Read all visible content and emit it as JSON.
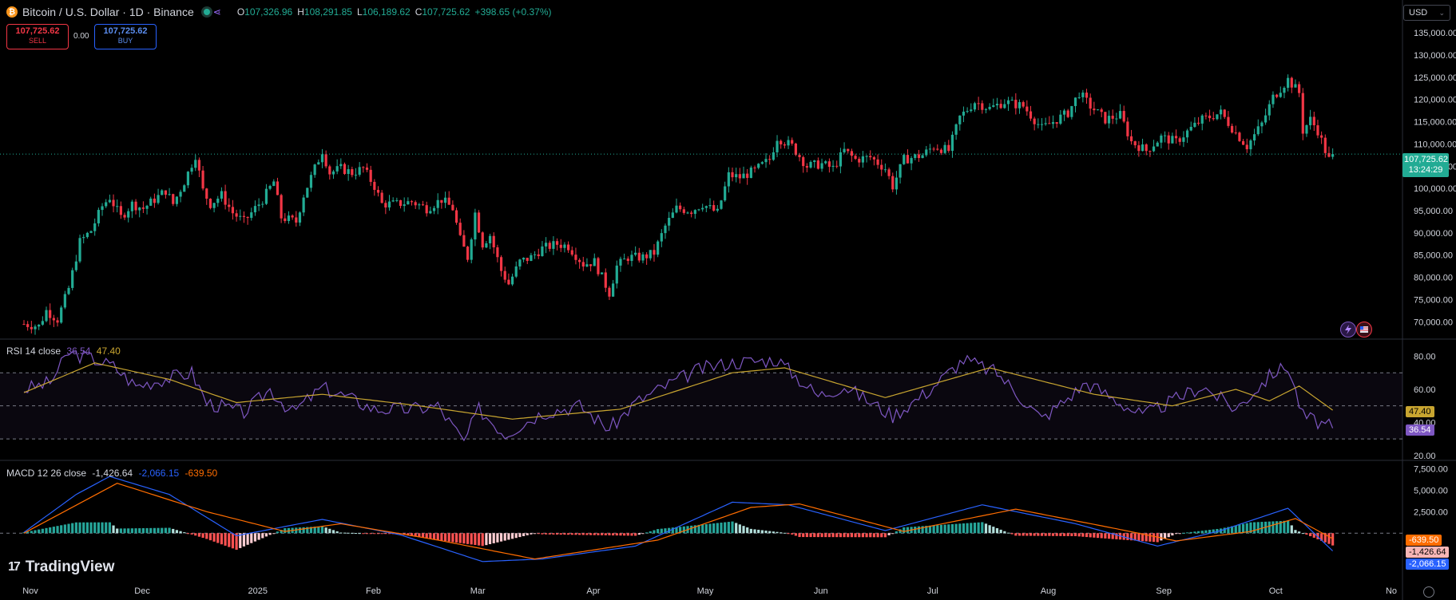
{
  "header": {
    "symbol_title": "Bitcoin / U.S. Dollar · 1D · Binance",
    "coin_icon": "bitcoin-icon",
    "ohlc": [
      {
        "label": "O",
        "value": "107,326.96"
      },
      {
        "label": "H",
        "value": "108,291.85"
      },
      {
        "label": "L",
        "value": "106,189.62"
      },
      {
        "label": "C",
        "value": "107,725.62"
      }
    ],
    "change": "+398.65 (+0.37%)"
  },
  "trade": {
    "sell_price": "107,725.62",
    "sell_label": "SELL",
    "spread": "0.00",
    "buy_price": "107,725.62",
    "buy_label": "BUY"
  },
  "currency": {
    "selected": "USD"
  },
  "price_tag": {
    "price": "107,725.62",
    "countdown": "13:24:29"
  },
  "rsi": {
    "legend": "RSI 14 close",
    "rsi_value": "36.54",
    "ma_value": "47.40",
    "levels": [
      70,
      50,
      30
    ]
  },
  "macd": {
    "legend": "MACD 12 26 close",
    "hist_value": "-1,426.64",
    "macd_value": "-2,066.15",
    "signal_value": "-639.50"
  },
  "branding": {
    "logo_text": "TradingView"
  },
  "colors": {
    "up": "#22ab94",
    "down": "#f23645",
    "rsi_line": "#7e57c2",
    "rsi_ma": "#c8a530",
    "macd_line": "#2962ff",
    "signal_line": "#ff6d00",
    "accent_tag": "#22ab94"
  },
  "chart_data": [
    {
      "type": "candlestick",
      "title": "Bitcoin / U.S. Dollar · 1D · Binance",
      "interval": "1D",
      "x_ticks": [
        "Nov",
        "Dec",
        "2025",
        "Feb",
        "Mar",
        "Apr",
        "May",
        "Jun",
        "Jul",
        "Aug",
        "Sep",
        "Oct",
        "No"
      ],
      "y_ticks": [
        "135,000.00",
        "130,000.00",
        "125,000.00",
        "120,000.00",
        "115,000.00",
        "110,000.00",
        "105,000.00",
        "100,000.00",
        "95,000.00",
        "90,000.00",
        "85,000.00",
        "80,000.00",
        "75,000.00",
        "70,000.00"
      ],
      "ylim": [
        67000,
        137000
      ],
      "close_path": [
        {
          "date": "2024-11-01",
          "close": 69500
        },
        {
          "date": "2024-11-05",
          "close": 69000
        },
        {
          "date": "2024-11-07",
          "close": 72500
        },
        {
          "date": "2024-11-10",
          "close": 70500
        },
        {
          "date": "2024-11-13",
          "close": 77500
        },
        {
          "date": "2024-11-16",
          "close": 88000
        },
        {
          "date": "2024-11-19",
          "close": 90500
        },
        {
          "date": "2024-11-22",
          "close": 96000
        },
        {
          "date": "2024-11-24",
          "close": 98000
        },
        {
          "date": "2024-11-27",
          "close": 93500
        },
        {
          "date": "2024-11-30",
          "close": 96500
        },
        {
          "date": "2024-12-03",
          "close": 95500
        },
        {
          "date": "2024-12-06",
          "close": 97500
        },
        {
          "date": "2024-12-09",
          "close": 99500
        },
        {
          "date": "2024-12-11",
          "close": 96500
        },
        {
          "date": "2024-12-14",
          "close": 101500
        },
        {
          "date": "2024-12-17",
          "close": 107500
        },
        {
          "date": "2024-12-19",
          "close": 99500
        },
        {
          "date": "2024-12-21",
          "close": 96500
        },
        {
          "date": "2024-12-24",
          "close": 98500
        },
        {
          "date": "2024-12-27",
          "close": 94500
        },
        {
          "date": "2024-12-30",
          "close": 92500
        },
        {
          "date": "2025-01-01",
          "close": 94500
        },
        {
          "date": "2025-01-04",
          "close": 97500
        },
        {
          "date": "2025-01-07",
          "close": 101500
        },
        {
          "date": "2025-01-09",
          "close": 93500
        },
        {
          "date": "2025-01-13",
          "close": 92500
        },
        {
          "date": "2025-01-15",
          "close": 98500
        },
        {
          "date": "2025-01-18",
          "close": 104500
        },
        {
          "date": "2025-01-20",
          "close": 108500
        },
        {
          "date": "2025-01-22",
          "close": 103500
        },
        {
          "date": "2025-01-25",
          "close": 104500
        },
        {
          "date": "2025-01-28",
          "close": 103500
        },
        {
          "date": "2025-01-31",
          "close": 104500
        },
        {
          "date": "2025-02-03",
          "close": 100500
        },
        {
          "date": "2025-02-05",
          "close": 96500
        },
        {
          "date": "2025-02-09",
          "close": 96500
        },
        {
          "date": "2025-02-13",
          "close": 97000
        },
        {
          "date": "2025-02-17",
          "close": 95500
        },
        {
          "date": "2025-02-21",
          "close": 97500
        },
        {
          "date": "2025-02-24",
          "close": 95500
        },
        {
          "date": "2025-02-26",
          "close": 88500
        },
        {
          "date": "2025-02-28",
          "close": 84500
        },
        {
          "date": "2025-03-02",
          "close": 94500
        },
        {
          "date": "2025-03-04",
          "close": 87500
        },
        {
          "date": "2025-03-06",
          "close": 89500
        },
        {
          "date": "2025-03-09",
          "close": 81500
        },
        {
          "date": "2025-03-11",
          "close": 78500
        },
        {
          "date": "2025-03-14",
          "close": 83500
        },
        {
          "date": "2025-03-17",
          "close": 84500
        },
        {
          "date": "2025-03-20",
          "close": 86500
        },
        {
          "date": "2025-03-24",
          "close": 87500
        },
        {
          "date": "2025-03-27",
          "close": 87000
        },
        {
          "date": "2025-03-31",
          "close": 83000
        },
        {
          "date": "2025-04-03",
          "close": 83500
        },
        {
          "date": "2025-04-07",
          "close": 76500
        },
        {
          "date": "2025-04-09",
          "close": 82500
        },
        {
          "date": "2025-04-12",
          "close": 84500
        },
        {
          "date": "2025-04-16",
          "close": 84500
        },
        {
          "date": "2025-04-19",
          "close": 85500
        },
        {
          "date": "2025-04-22",
          "close": 91500
        },
        {
          "date": "2025-04-25",
          "close": 95500
        },
        {
          "date": "2025-04-29",
          "close": 95000
        },
        {
          "date": "2025-05-02",
          "close": 96500
        },
        {
          "date": "2025-05-06",
          "close": 94500
        },
        {
          "date": "2025-05-09",
          "close": 103000
        },
        {
          "date": "2025-05-12",
          "close": 102500
        },
        {
          "date": "2025-05-16",
          "close": 104000
        },
        {
          "date": "2025-05-20",
          "close": 106500
        },
        {
          "date": "2025-05-22",
          "close": 111500
        },
        {
          "date": "2025-05-26",
          "close": 109500
        },
        {
          "date": "2025-05-30",
          "close": 105000
        },
        {
          "date": "2025-06-03",
          "close": 105500
        },
        {
          "date": "2025-06-06",
          "close": 104500
        },
        {
          "date": "2025-06-09",
          "close": 108500
        },
        {
          "date": "2025-06-12",
          "close": 106500
        },
        {
          "date": "2025-06-16",
          "close": 107000
        },
        {
          "date": "2025-06-20",
          "close": 104500
        },
        {
          "date": "2025-06-22",
          "close": 100500
        },
        {
          "date": "2025-06-25",
          "close": 106500
        },
        {
          "date": "2025-06-30",
          "close": 107500
        },
        {
          "date": "2025-07-03",
          "close": 109500
        },
        {
          "date": "2025-07-07",
          "close": 108500
        },
        {
          "date": "2025-07-10",
          "close": 116000
        },
        {
          "date": "2025-07-14",
          "close": 119500
        },
        {
          "date": "2025-07-18",
          "close": 118000
        },
        {
          "date": "2025-07-22",
          "close": 119500
        },
        {
          "date": "2025-07-27",
          "close": 118500
        },
        {
          "date": "2025-08-01",
          "close": 113500
        },
        {
          "date": "2025-08-04",
          "close": 115000
        },
        {
          "date": "2025-08-08",
          "close": 117000
        },
        {
          "date": "2025-08-11",
          "close": 121500
        },
        {
          "date": "2025-08-14",
          "close": 118500
        },
        {
          "date": "2025-08-18",
          "close": 115500
        },
        {
          "date": "2025-08-22",
          "close": 116500
        },
        {
          "date": "2025-08-25",
          "close": 110500
        },
        {
          "date": "2025-08-29",
          "close": 108500
        },
        {
          "date": "2025-09-02",
          "close": 111500
        },
        {
          "date": "2025-09-06",
          "close": 110500
        },
        {
          "date": "2025-09-10",
          "close": 113500
        },
        {
          "date": "2025-09-13",
          "close": 115500
        },
        {
          "date": "2025-09-18",
          "close": 117000
        },
        {
          "date": "2025-09-22",
          "close": 112500
        },
        {
          "date": "2025-09-25",
          "close": 109500
        },
        {
          "date": "2025-09-29",
          "close": 114500
        },
        {
          "date": "2025-10-02",
          "close": 120500
        },
        {
          "date": "2025-10-06",
          "close": 124500
        },
        {
          "date": "2025-10-09",
          "close": 121500
        },
        {
          "date": "2025-10-10",
          "close": 113000
        },
        {
          "date": "2025-10-12",
          "close": 115500
        },
        {
          "date": "2025-10-14",
          "close": 113000
        },
        {
          "date": "2025-10-16",
          "close": 108500
        },
        {
          "date": "2025-10-17",
          "close": 106500
        },
        {
          "date": "2025-10-18",
          "close": 107725.62
        }
      ],
      "last_price": 107725.62
    },
    {
      "type": "line",
      "name": "RSI 14 close",
      "y_ticks": [
        "80.00",
        "60.00",
        "40.00",
        "20.00"
      ],
      "ylim": [
        18,
        87
      ],
      "levels": [
        70,
        50,
        30
      ],
      "rsi": [
        {
          "date": "2024-11-01",
          "value": 60
        },
        {
          "date": "2024-11-08",
          "value": 64
        },
        {
          "date": "2024-11-13",
          "value": 82
        },
        {
          "date": "2024-11-20",
          "value": 78
        },
        {
          "date": "2024-11-25",
          "value": 74
        },
        {
          "date": "2024-12-01",
          "value": 62
        },
        {
          "date": "2024-12-08",
          "value": 66
        },
        {
          "date": "2024-12-16",
          "value": 70
        },
        {
          "date": "2024-12-20",
          "value": 52
        },
        {
          "date": "2024-12-30",
          "value": 46
        },
        {
          "date": "2025-01-06",
          "value": 60
        },
        {
          "date": "2025-01-12",
          "value": 46
        },
        {
          "date": "2025-01-20",
          "value": 61
        },
        {
          "date": "2025-01-27",
          "value": 55
        },
        {
          "date": "2025-02-03",
          "value": 48
        },
        {
          "date": "2025-02-13",
          "value": 48
        },
        {
          "date": "2025-02-20",
          "value": 50
        },
        {
          "date": "2025-02-27",
          "value": 28
        },
        {
          "date": "2025-03-03",
          "value": 48
        },
        {
          "date": "2025-03-10",
          "value": 33
        },
        {
          "date": "2025-03-20",
          "value": 46
        },
        {
          "date": "2025-03-30",
          "value": 50
        },
        {
          "date": "2025-04-07",
          "value": 36
        },
        {
          "date": "2025-04-14",
          "value": 52
        },
        {
          "date": "2025-04-22",
          "value": 62
        },
        {
          "date": "2025-05-01",
          "value": 72
        },
        {
          "date": "2025-05-09",
          "value": 76
        },
        {
          "date": "2025-05-22",
          "value": 78
        },
        {
          "date": "2025-06-02",
          "value": 56
        },
        {
          "date": "2025-06-09",
          "value": 62
        },
        {
          "date": "2025-06-22",
          "value": 44
        },
        {
          "date": "2025-07-01",
          "value": 58
        },
        {
          "date": "2025-07-11",
          "value": 78
        },
        {
          "date": "2025-07-20",
          "value": 70
        },
        {
          "date": "2025-08-01",
          "value": 42
        },
        {
          "date": "2025-08-13",
          "value": 64
        },
        {
          "date": "2025-08-28",
          "value": 44
        },
        {
          "date": "2025-09-13",
          "value": 62
        },
        {
          "date": "2025-09-22",
          "value": 48
        },
        {
          "date": "2025-10-02",
          "value": 70
        },
        {
          "date": "2025-10-06",
          "value": 74
        },
        {
          "date": "2025-10-10",
          "value": 44
        },
        {
          "date": "2025-10-18",
          "value": 36.54
        }
      ],
      "rsi_ma": [
        {
          "date": "2024-11-01",
          "value": 58
        },
        {
          "date": "2024-11-20",
          "value": 76
        },
        {
          "date": "2024-12-10",
          "value": 66
        },
        {
          "date": "2024-12-28",
          "value": 52
        },
        {
          "date": "2025-01-20",
          "value": 57
        },
        {
          "date": "2025-02-15",
          "value": 50
        },
        {
          "date": "2025-03-12",
          "value": 42
        },
        {
          "date": "2025-04-10",
          "value": 48
        },
        {
          "date": "2025-05-10",
          "value": 70
        },
        {
          "date": "2025-05-24",
          "value": 73
        },
        {
          "date": "2025-06-20",
          "value": 55
        },
        {
          "date": "2025-07-18",
          "value": 73
        },
        {
          "date": "2025-08-15",
          "value": 57
        },
        {
          "date": "2025-09-05",
          "value": 50
        },
        {
          "date": "2025-09-22",
          "value": 60
        },
        {
          "date": "2025-10-01",
          "value": 53
        },
        {
          "date": "2025-10-09",
          "value": 62
        },
        {
          "date": "2025-10-18",
          "value": 47.4
        }
      ],
      "rsi_last": 36.54,
      "ma_last": 47.4
    },
    {
      "type": "line",
      "name": "MACD 12 26 close",
      "y_ticks": [
        "7,500.00",
        "5,000.00",
        "2,500.00"
      ],
      "ylim": [
        -4800,
        8000
      ],
      "macd": [
        {
          "date": "2024-11-01",
          "value": 100
        },
        {
          "date": "2024-11-15",
          "value": 4500
        },
        {
          "date": "2024-11-24",
          "value": 6600
        },
        {
          "date": "2024-12-10",
          "value": 4500
        },
        {
          "date": "2024-12-28",
          "value": -300
        },
        {
          "date": "2025-01-20",
          "value": 1600
        },
        {
          "date": "2025-02-10",
          "value": -200
        },
        {
          "date": "2025-03-04",
          "value": -3300
        },
        {
          "date": "2025-03-20",
          "value": -3000
        },
        {
          "date": "2025-04-14",
          "value": -1500
        },
        {
          "date": "2025-05-10",
          "value": 3600
        },
        {
          "date": "2025-05-25",
          "value": 3300
        },
        {
          "date": "2025-06-20",
          "value": 300
        },
        {
          "date": "2025-07-16",
          "value": 3300
        },
        {
          "date": "2025-08-10",
          "value": 1100
        },
        {
          "date": "2025-09-01",
          "value": -1500
        },
        {
          "date": "2025-09-18",
          "value": 300
        },
        {
          "date": "2025-10-06",
          "value": 2900
        },
        {
          "date": "2025-10-18",
          "value": -2066.15
        }
      ],
      "signal": [
        {
          "date": "2024-11-01",
          "value": 0
        },
        {
          "date": "2024-11-26",
          "value": 5800
        },
        {
          "date": "2024-12-20",
          "value": 2500
        },
        {
          "date": "2025-01-10",
          "value": 200
        },
        {
          "date": "2025-01-25",
          "value": 1100
        },
        {
          "date": "2025-02-20",
          "value": -800
        },
        {
          "date": "2025-03-18",
          "value": -3000
        },
        {
          "date": "2025-04-20",
          "value": -800
        },
        {
          "date": "2025-05-15",
          "value": 3000
        },
        {
          "date": "2025-05-28",
          "value": 3400
        },
        {
          "date": "2025-06-25",
          "value": 200
        },
        {
          "date": "2025-07-25",
          "value": 2800
        },
        {
          "date": "2025-08-20",
          "value": 600
        },
        {
          "date": "2025-09-06",
          "value": -900
        },
        {
          "date": "2025-09-26",
          "value": 200
        },
        {
          "date": "2025-10-08",
          "value": 1700
        },
        {
          "date": "2025-10-18",
          "value": -639.5
        }
      ],
      "macd_last": -2066.15,
      "signal_last": -639.5,
      "hist_last": -1426.64
    }
  ]
}
